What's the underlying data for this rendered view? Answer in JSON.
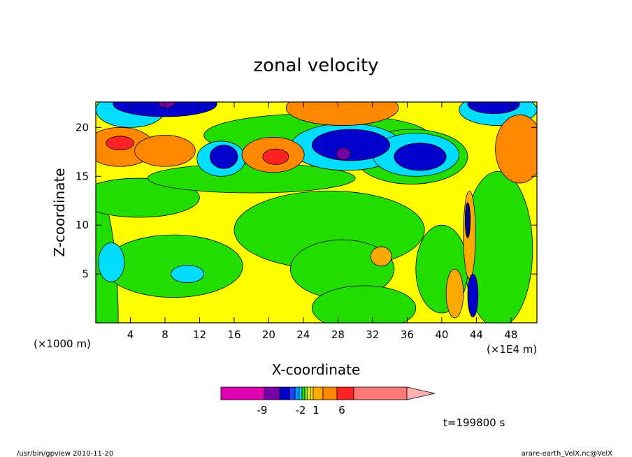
{
  "chart_data": {
    "type": "heatmap",
    "title": "zonal velocity",
    "xlabel": "X-coordinate",
    "ylabel": "Z-coordinate",
    "x_unit_left": "(×1000 m)",
    "x_unit_right": "(×1E4 m)",
    "x_ticks": [
      "4",
      "8",
      "12",
      "16",
      "20",
      "24",
      "28",
      "32",
      "36",
      "40",
      "44",
      "48"
    ],
    "x_tick_values": [
      4,
      8,
      12,
      16,
      20,
      24,
      28,
      32,
      36,
      40,
      44,
      48
    ],
    "y_ticks": [
      "5",
      "10",
      "15",
      "20"
    ],
    "y_tick_values": [
      5,
      10,
      15,
      20
    ],
    "xlim": [
      0,
      51
    ],
    "ylim": [
      0,
      22.6
    ],
    "background_level": "yellow",
    "regions": [
      {
        "color": "#22dd00",
        "x": 0.0,
        "y": 0.0,
        "rx": 2.6,
        "ry": 13.5
      },
      {
        "color": "#22dd00",
        "x": 9.0,
        "y": 5.8,
        "rx": 8.0,
        "ry": 3.2
      },
      {
        "color": "#22dd00",
        "x": 27.0,
        "y": 9.5,
        "rx": 11.0,
        "ry": 4.0
      },
      {
        "color": "#22dd00",
        "x": 28.5,
        "y": 5.5,
        "rx": 6.0,
        "ry": 3.0
      },
      {
        "color": "#22dd00",
        "x": 31.0,
        "y": 1.5,
        "rx": 6.0,
        "ry": 2.3
      },
      {
        "color": "#22dd00",
        "x": 46.5,
        "y": 7.5,
        "rx": 4.0,
        "ry": 8.0
      },
      {
        "color": "#22dd00",
        "x": 40.0,
        "y": 5.5,
        "rx": 3.0,
        "ry": 4.5
      },
      {
        "color": "#22dd00",
        "x": 5.0,
        "y": 12.8,
        "rx": 7.0,
        "ry": 2.0
      },
      {
        "color": "#22dd00",
        "x": 18.0,
        "y": 14.8,
        "rx": 12.0,
        "ry": 1.5
      },
      {
        "color": "#22dd00",
        "x": 25.5,
        "y": 19.2,
        "rx": 13.0,
        "ry": 2.2
      },
      {
        "color": "#22dd00",
        "x": 36.5,
        "y": 17.0,
        "rx": 6.5,
        "ry": 2.8
      },
      {
        "color": "#00ddff",
        "x": 1.8,
        "y": 6.2,
        "rx": 1.5,
        "ry": 2.0
      },
      {
        "color": "#00ddff",
        "x": 10.6,
        "y": 5.0,
        "rx": 1.9,
        "ry": 0.9
      },
      {
        "color": "#00ddff",
        "x": 14.5,
        "y": 16.8,
        "rx": 2.8,
        "ry": 1.8
      },
      {
        "color": "#00ddff",
        "x": 29.0,
        "y": 18.0,
        "rx": 6.5,
        "ry": 2.4
      },
      {
        "color": "#00ddff",
        "x": 37.0,
        "y": 17.2,
        "rx": 5.0,
        "ry": 2.2
      },
      {
        "color": "#00ddff",
        "x": 4.0,
        "y": 21.8,
        "rx": 4.0,
        "ry": 1.8
      },
      {
        "color": "#00ddff",
        "x": 46.5,
        "y": 21.8,
        "rx": 4.5,
        "ry": 1.6
      },
      {
        "color": "#0000cc",
        "x": 14.8,
        "y": 17.0,
        "rx": 1.6,
        "ry": 1.2
      },
      {
        "color": "#0000cc",
        "x": 29.5,
        "y": 18.2,
        "rx": 4.5,
        "ry": 1.6
      },
      {
        "color": "#0000cc",
        "x": 37.5,
        "y": 17.0,
        "rx": 3.0,
        "ry": 1.4
      },
      {
        "color": "#0000cc",
        "x": 8.0,
        "y": 22.4,
        "rx": 6.0,
        "ry": 1.3
      },
      {
        "color": "#0000cc",
        "x": 46.0,
        "y": 22.4,
        "rx": 3.0,
        "ry": 1.0
      },
      {
        "color": "#7700aa",
        "x": 28.6,
        "y": 17.3,
        "rx": 0.8,
        "ry": 0.6
      },
      {
        "color": "#7700aa",
        "x": 8.2,
        "y": 22.6,
        "rx": 1.0,
        "ry": 0.6
      },
      {
        "color": "#ff8800",
        "x": 2.8,
        "y": 18.0,
        "rx": 4.0,
        "ry": 2.0
      },
      {
        "color": "#ff8800",
        "x": 8.0,
        "y": 17.6,
        "rx": 3.5,
        "ry": 1.6
      },
      {
        "color": "#ff8800",
        "x": 20.5,
        "y": 17.2,
        "rx": 3.6,
        "ry": 1.8
      },
      {
        "color": "#ff8800",
        "x": 28.5,
        "y": 22.0,
        "rx": 6.5,
        "ry": 1.8
      },
      {
        "color": "#ff8800",
        "x": 49.0,
        "y": 17.8,
        "rx": 2.8,
        "ry": 3.5
      },
      {
        "color": "#ff2222",
        "x": 20.8,
        "y": 17.0,
        "rx": 1.5,
        "ry": 0.8
      },
      {
        "color": "#ff2222",
        "x": 2.8,
        "y": 18.4,
        "rx": 1.6,
        "ry": 0.7
      },
      {
        "color": "#ffaa00",
        "x": 33.0,
        "y": 6.8,
        "rx": 1.2,
        "ry": 1.0
      },
      {
        "color": "#ffaa00",
        "x": 43.2,
        "y": 9.0,
        "rx": 0.7,
        "ry": 4.5
      },
      {
        "color": "#ffaa00",
        "x": 41.5,
        "y": 3.0,
        "rx": 1.0,
        "ry": 2.5
      },
      {
        "color": "#000088",
        "x": 43.0,
        "y": 10.5,
        "rx": 0.3,
        "ry": 1.8
      },
      {
        "color": "#0000cc",
        "x": 43.6,
        "y": 2.8,
        "rx": 0.6,
        "ry": 2.2
      }
    ],
    "colorbar": {
      "colors": [
        "#e000b0",
        "#7700aa",
        "#0000cc",
        "#2244ff",
        "#0099ff",
        "#00ddff",
        "#22dd00",
        "#88ee00",
        "#ffff00",
        "#ffdd00",
        "#ffaa00",
        "#ff8800",
        "#ff2222",
        "#ff7777",
        "#ffb0b0"
      ],
      "labels": [
        "-9",
        "-2",
        "1",
        "6"
      ]
    }
  },
  "time_label": "t=199800 s",
  "footer_left": "/usr/bin/gpview  2010-11-20",
  "footer_right": "arare-earth_VelX.nc@VelX"
}
